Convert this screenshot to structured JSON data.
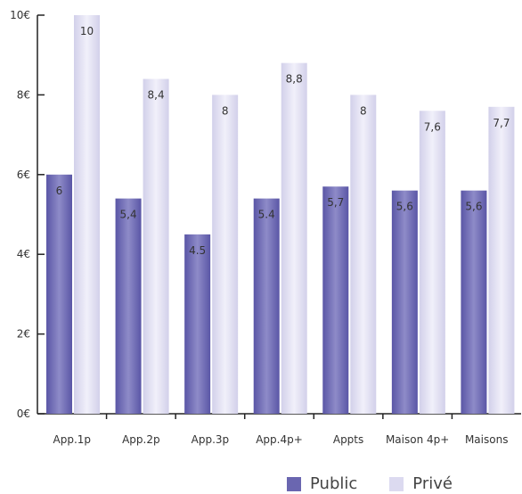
{
  "chart_data": {
    "type": "bar",
    "categories": [
      "App.1p",
      "App.2p",
      "App.3p",
      "App.4p+",
      "Appts",
      "Maison 4p+",
      "Maisons"
    ],
    "series": [
      {
        "name": "Public",
        "values": [
          6,
          5.4,
          4.5,
          5.4,
          5.7,
          5.6,
          5.6
        ],
        "labels": [
          "6",
          "5,4",
          "4.5",
          "5.4",
          "5,7",
          "5,6",
          "5,6"
        ],
        "color": "#6a66b0"
      },
      {
        "name": "Privé",
        "values": [
          10,
          8.4,
          8,
          8.8,
          8,
          7.6,
          7.7
        ],
        "labels": [
          "10",
          "8,4",
          "8",
          "8,8",
          "8",
          "7,6",
          "7,7"
        ],
        "color": "#dcdaf0"
      }
    ],
    "ylim": [
      0,
      10
    ],
    "yticks": [
      0,
      2,
      4,
      6,
      8,
      10
    ],
    "ytick_labels": [
      "0€",
      "2€",
      "4€",
      "6€",
      "8€",
      "10€"
    ],
    "title": "",
    "xlabel": "",
    "ylabel": "",
    "grid": false,
    "legend_position": "bottom-right"
  }
}
